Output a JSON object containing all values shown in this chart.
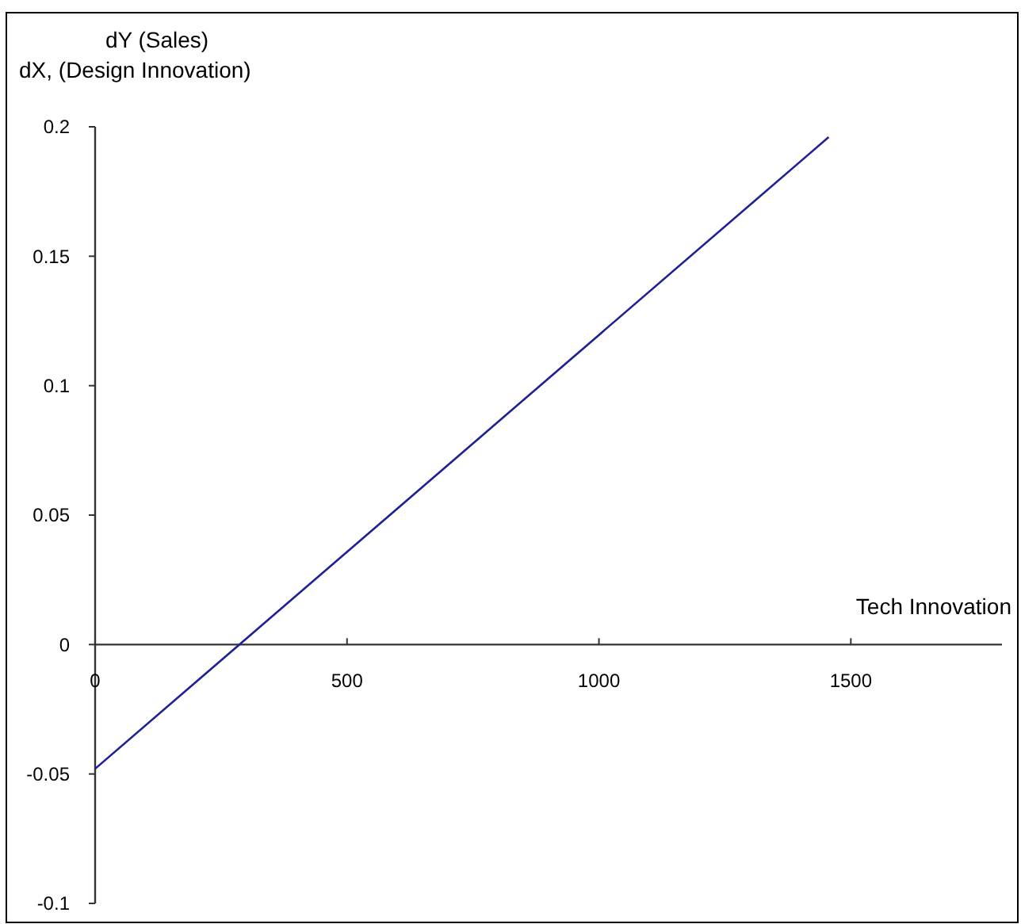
{
  "chart_data": {
    "type": "line",
    "ylabel": "dY (Sales)\ndX, (Design Innovation)",
    "xlabel": "Tech Innovation",
    "xlim": [
      0,
      1800
    ],
    "xticks": [
      0,
      500,
      1000,
      1500
    ],
    "ylim": [
      -0.1,
      0.2
    ],
    "yticks": [
      -0.1,
      -0.05,
      0,
      0.05,
      0.1,
      0.15,
      0.2
    ],
    "series": [
      {
        "color": "#1f1f96",
        "x": [
          0,
          1456
        ],
        "values": [
          -0.048,
          0.196
        ]
      }
    ],
    "grid": false,
    "marker": "none",
    "line_style": "solid"
  }
}
